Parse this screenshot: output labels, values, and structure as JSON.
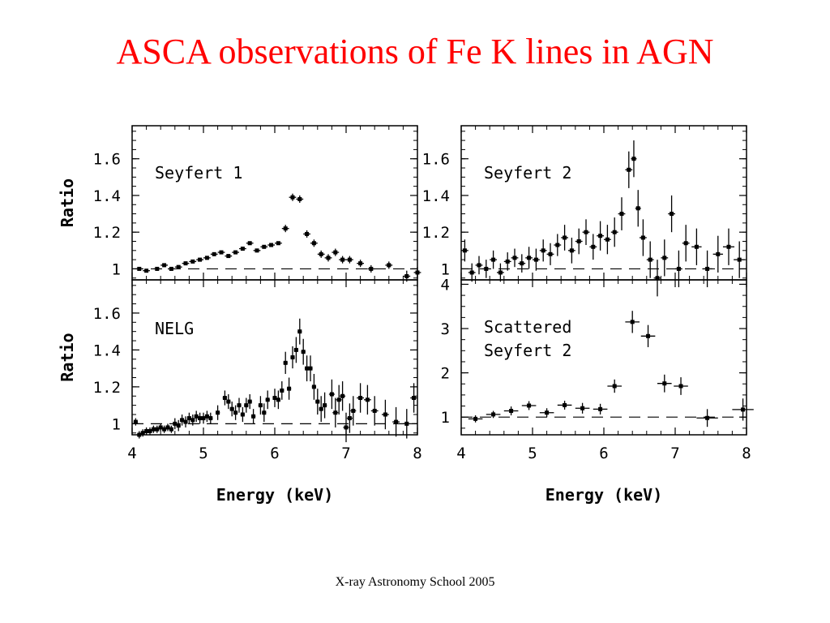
{
  "slide": {
    "title": "ASCA observations of Fe K lines in AGN",
    "footer": "X-ray Astronomy School 2005"
  },
  "chart_data": [
    {
      "type": "scatter",
      "panel_label": "Seyfert 1",
      "xlabel": "",
      "ylabel": "Ratio",
      "xlim": [
        4,
        8
      ],
      "ylim": [
        0.94,
        1.78
      ],
      "x_ticks": [
        4,
        5,
        6,
        7,
        8
      ],
      "y_ticks": [
        1,
        1.2,
        1.4,
        1.6
      ],
      "y_tick_labels": [
        "1",
        "1.2",
        "1.4",
        "1.6"
      ],
      "reference_line": 1,
      "series": [
        {
          "x": [
            4.1,
            4.2,
            4.35,
            4.45,
            4.55,
            4.65,
            4.75,
            4.85,
            4.95,
            5.05,
            5.15,
            5.25,
            5.35,
            5.45,
            5.55,
            5.65,
            5.75,
            5.85,
            5.95,
            6.05,
            6.15,
            6.25,
            6.35,
            6.45,
            6.55,
            6.65,
            6.75,
            6.85,
            6.95,
            7.05,
            7.2,
            7.35,
            7.6,
            7.85,
            8.0
          ],
          "y": [
            1.0,
            0.99,
            1.0,
            1.02,
            1.0,
            1.01,
            1.03,
            1.04,
            1.05,
            1.06,
            1.08,
            1.09,
            1.07,
            1.09,
            1.11,
            1.14,
            1.1,
            1.12,
            1.13,
            1.14,
            1.22,
            1.39,
            1.38,
            1.19,
            1.14,
            1.08,
            1.06,
            1.09,
            1.05,
            1.05,
            1.03,
            1.0,
            1.02,
            0.96,
            0.98
          ],
          "xerr": [
            0.05,
            0.05,
            0.05,
            0.05,
            0.05,
            0.05,
            0.05,
            0.05,
            0.05,
            0.05,
            0.05,
            0.05,
            0.05,
            0.05,
            0.05,
            0.05,
            0.05,
            0.05,
            0.05,
            0.05,
            0.05,
            0.05,
            0.05,
            0.05,
            0.05,
            0.05,
            0.05,
            0.05,
            0.05,
            0.05,
            0.05,
            0.05,
            0.05,
            0.05,
            0.05
          ],
          "yerr": [
            0.01,
            0.01,
            0.01,
            0.01,
            0.01,
            0.01,
            0.01,
            0.01,
            0.01,
            0.01,
            0.01,
            0.01,
            0.01,
            0.01,
            0.01,
            0.01,
            0.01,
            0.01,
            0.01,
            0.01,
            0.02,
            0.02,
            0.02,
            0.02,
            0.02,
            0.02,
            0.02,
            0.02,
            0.02,
            0.02,
            0.02,
            0.02,
            0.02,
            0.03,
            0.03
          ]
        }
      ]
    },
    {
      "type": "scatter",
      "panel_label": "Seyfert 2",
      "xlabel": "",
      "ylabel": "",
      "xlim": [
        4,
        8
      ],
      "ylim": [
        0.94,
        1.78
      ],
      "x_ticks": [
        4,
        5,
        6,
        7,
        8
      ],
      "y_ticks": [
        1,
        1.2,
        1.4,
        1.6
      ],
      "y_tick_labels": [
        "1",
        "1.2",
        "1.4",
        "1.6"
      ],
      "reference_line": 1,
      "series": [
        {
          "x": [
            4.05,
            4.15,
            4.25,
            4.35,
            4.45,
            4.55,
            4.65,
            4.75,
            4.85,
            4.95,
            5.05,
            5.15,
            5.25,
            5.35,
            5.45,
            5.55,
            5.65,
            5.75,
            5.85,
            5.95,
            6.05,
            6.15,
            6.25,
            6.35,
            6.42,
            6.48,
            6.55,
            6.65,
            6.75,
            6.85,
            6.95,
            7.05,
            7.15,
            7.3,
            7.45,
            7.6,
            7.75,
            7.9
          ],
          "y": [
            1.1,
            0.98,
            1.02,
            1.0,
            1.05,
            0.98,
            1.04,
            1.06,
            1.03,
            1.06,
            1.05,
            1.1,
            1.08,
            1.13,
            1.17,
            1.1,
            1.15,
            1.2,
            1.12,
            1.18,
            1.16,
            1.2,
            1.3,
            1.54,
            1.6,
            1.33,
            1.17,
            1.05,
            0.95,
            1.06,
            1.3,
            1.0,
            1.14,
            1.12,
            1.0,
            1.08,
            1.12,
            1.05
          ],
          "xerr": [
            0.05,
            0.05,
            0.05,
            0.05,
            0.05,
            0.05,
            0.05,
            0.05,
            0.05,
            0.05,
            0.05,
            0.05,
            0.05,
            0.05,
            0.05,
            0.05,
            0.05,
            0.05,
            0.05,
            0.05,
            0.05,
            0.05,
            0.05,
            0.05,
            0.04,
            0.04,
            0.05,
            0.05,
            0.05,
            0.05,
            0.05,
            0.05,
            0.05,
            0.07,
            0.07,
            0.07,
            0.08,
            0.08
          ],
          "yerr": [
            0.06,
            0.05,
            0.05,
            0.05,
            0.05,
            0.05,
            0.05,
            0.05,
            0.05,
            0.06,
            0.06,
            0.06,
            0.06,
            0.06,
            0.07,
            0.07,
            0.07,
            0.07,
            0.07,
            0.08,
            0.08,
            0.08,
            0.09,
            0.1,
            0.1,
            0.1,
            0.1,
            0.1,
            0.1,
            0.1,
            0.1,
            0.1,
            0.1,
            0.1,
            0.1,
            0.1,
            0.1,
            0.1
          ]
        }
      ]
    },
    {
      "type": "scatter",
      "panel_label": "NELG",
      "xlabel": "Energy (keV)",
      "ylabel": "Ratio",
      "xlim": [
        4,
        8
      ],
      "ylim": [
        0.94,
        1.78
      ],
      "x_ticks": [
        4,
        5,
        6,
        7,
        8
      ],
      "x_tick_labels": [
        "4",
        "5",
        "6",
        "7",
        "8"
      ],
      "y_ticks": [
        1,
        1.2,
        1.4,
        1.6
      ],
      "y_tick_labels": [
        "1",
        "1.2",
        "1.4",
        "1.6"
      ],
      "reference_line": 1,
      "series": [
        {
          "x": [
            4.05,
            4.1,
            4.15,
            4.2,
            4.25,
            4.3,
            4.35,
            4.4,
            4.45,
            4.5,
            4.55,
            4.6,
            4.65,
            4.7,
            4.75,
            4.8,
            4.85,
            4.9,
            4.95,
            5.0,
            5.05,
            5.1,
            5.2,
            5.3,
            5.35,
            5.4,
            5.45,
            5.5,
            5.55,
            5.6,
            5.65,
            5.7,
            5.8,
            5.85,
            5.9,
            6.0,
            6.05,
            6.1,
            6.15,
            6.2,
            6.25,
            6.3,
            6.35,
            6.4,
            6.45,
            6.5,
            6.55,
            6.6,
            6.65,
            6.7,
            6.8,
            6.85,
            6.9,
            6.95,
            7.0,
            7.05,
            7.1,
            7.2,
            7.3,
            7.4,
            7.55,
            7.7,
            7.85,
            7.95
          ],
          "y": [
            1.01,
            0.94,
            0.95,
            0.96,
            0.96,
            0.97,
            0.97,
            0.98,
            0.97,
            0.98,
            0.97,
            1.0,
            0.99,
            1.02,
            1.01,
            1.03,
            1.02,
            1.04,
            1.03,
            1.03,
            1.04,
            1.03,
            1.06,
            1.14,
            1.12,
            1.08,
            1.06,
            1.1,
            1.05,
            1.1,
            1.12,
            1.04,
            1.1,
            1.06,
            1.13,
            1.14,
            1.13,
            1.18,
            1.33,
            1.19,
            1.36,
            1.4,
            1.5,
            1.39,
            1.3,
            1.3,
            1.2,
            1.12,
            1.08,
            1.1,
            1.16,
            1.06,
            1.13,
            1.15,
            0.98,
            1.03,
            1.07,
            1.14,
            1.13,
            1.07,
            1.05,
            1.01,
            1.0,
            1.14
          ],
          "xerr": [
            0.03,
            0.03,
            0.03,
            0.03,
            0.03,
            0.03,
            0.03,
            0.03,
            0.03,
            0.03,
            0.03,
            0.03,
            0.03,
            0.03,
            0.03,
            0.03,
            0.03,
            0.03,
            0.03,
            0.03,
            0.03,
            0.03,
            0.03,
            0.03,
            0.03,
            0.03,
            0.03,
            0.03,
            0.03,
            0.03,
            0.03,
            0.03,
            0.03,
            0.03,
            0.03,
            0.03,
            0.03,
            0.03,
            0.03,
            0.03,
            0.03,
            0.03,
            0.03,
            0.03,
            0.03,
            0.03,
            0.03,
            0.03,
            0.03,
            0.03,
            0.04,
            0.04,
            0.04,
            0.04,
            0.04,
            0.04,
            0.04,
            0.05,
            0.05,
            0.05,
            0.05,
            0.05,
            0.05,
            0.05
          ],
          "yerr": [
            0.02,
            0.02,
            0.02,
            0.02,
            0.02,
            0.02,
            0.02,
            0.02,
            0.02,
            0.02,
            0.02,
            0.03,
            0.03,
            0.03,
            0.03,
            0.03,
            0.03,
            0.03,
            0.03,
            0.03,
            0.03,
            0.03,
            0.04,
            0.04,
            0.04,
            0.04,
            0.04,
            0.04,
            0.04,
            0.04,
            0.04,
            0.04,
            0.05,
            0.05,
            0.05,
            0.05,
            0.05,
            0.05,
            0.06,
            0.06,
            0.06,
            0.07,
            0.07,
            0.07,
            0.07,
            0.07,
            0.07,
            0.07,
            0.07,
            0.07,
            0.08,
            0.08,
            0.08,
            0.08,
            0.08,
            0.08,
            0.08,
            0.08,
            0.08,
            0.08,
            0.08,
            0.08,
            0.08,
            0.08
          ]
        }
      ]
    },
    {
      "type": "scatter",
      "panel_label": "Scattered\nSeyfert 2",
      "xlabel": "Energy (keV)",
      "ylabel": "",
      "xlim": [
        4,
        8
      ],
      "ylim": [
        0.6,
        4.1
      ],
      "x_ticks": [
        4,
        5,
        6,
        7,
        8
      ],
      "x_tick_labels": [
        "4",
        "5",
        "6",
        "7",
        "8"
      ],
      "y_ticks": [
        1,
        2,
        3,
        4
      ],
      "y_tick_labels": [
        "1",
        "2",
        "3",
        "4"
      ],
      "reference_line": 1,
      "series": [
        {
          "x": [
            4.2,
            4.45,
            4.7,
            4.95,
            5.2,
            5.45,
            5.7,
            5.95,
            6.15,
            6.4,
            6.62,
            6.85,
            7.08,
            7.45,
            7.95
          ],
          "y": [
            0.96,
            1.06,
            1.14,
            1.26,
            1.1,
            1.27,
            1.2,
            1.18,
            1.7,
            3.15,
            2.83,
            1.76,
            1.7,
            0.98,
            1.17
          ],
          "xerr": [
            0.1,
            0.1,
            0.1,
            0.1,
            0.1,
            0.1,
            0.1,
            0.1,
            0.1,
            0.1,
            0.1,
            0.1,
            0.1,
            0.15,
            0.15
          ],
          "yerr": [
            0.08,
            0.08,
            0.1,
            0.1,
            0.1,
            0.1,
            0.12,
            0.12,
            0.15,
            0.25,
            0.25,
            0.2,
            0.2,
            0.2,
            0.25
          ]
        }
      ]
    }
  ]
}
